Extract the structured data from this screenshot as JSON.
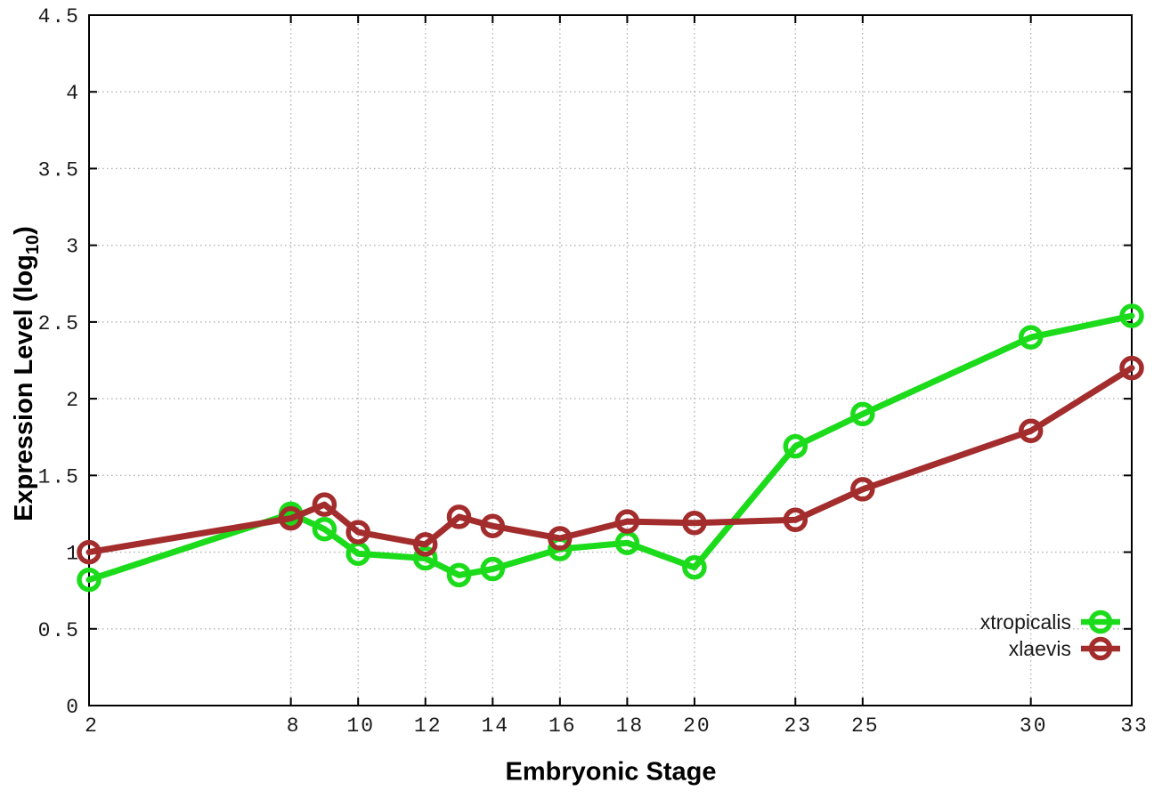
{
  "page": {
    "background": "#ffffff"
  },
  "labels": {
    "xlabel": "Embryonic Stage",
    "ylabel_prefix": "Expression Level (log",
    "ylabel_sub": "10",
    "ylabel_suffix": ")"
  },
  "chart_data": {
    "type": "line",
    "title": "",
    "xlabel": "Embryonic Stage",
    "ylabel": "Expression Level (log10)",
    "x": [
      2,
      8,
      9,
      10,
      12,
      13,
      14,
      16,
      18,
      20,
      23,
      25,
      30,
      33
    ],
    "xticks": [
      2,
      8,
      10,
      12,
      14,
      16,
      18,
      20,
      23,
      25,
      30,
      33
    ],
    "yticks": [
      0,
      0.5,
      1,
      1.5,
      2,
      2.5,
      3,
      3.5,
      4,
      4.5
    ],
    "xlim": [
      2,
      33
    ],
    "ylim": [
      0,
      4.5
    ],
    "grid": true,
    "grid_style": "dotted",
    "legend_position": "bottom-right-inside",
    "marker": "open-circle",
    "axis_color": "#000000",
    "grid_color": "#b2b2b2",
    "tick_label_color": "#1a1a1a",
    "series": [
      {
        "name": "xtropicalis",
        "color": "#1bdb1b",
        "values": [
          0.82,
          1.25,
          1.15,
          0.99,
          0.96,
          0.85,
          0.89,
          1.02,
          1.06,
          0.9,
          1.69,
          1.9,
          2.4,
          2.54
        ]
      },
      {
        "name": "xlaevis",
        "color": "#a32c2c",
        "values": [
          1.0,
          1.22,
          1.31,
          1.13,
          1.05,
          1.23,
          1.17,
          1.09,
          1.2,
          1.19,
          1.21,
          1.41,
          1.79,
          2.2
        ]
      }
    ]
  }
}
